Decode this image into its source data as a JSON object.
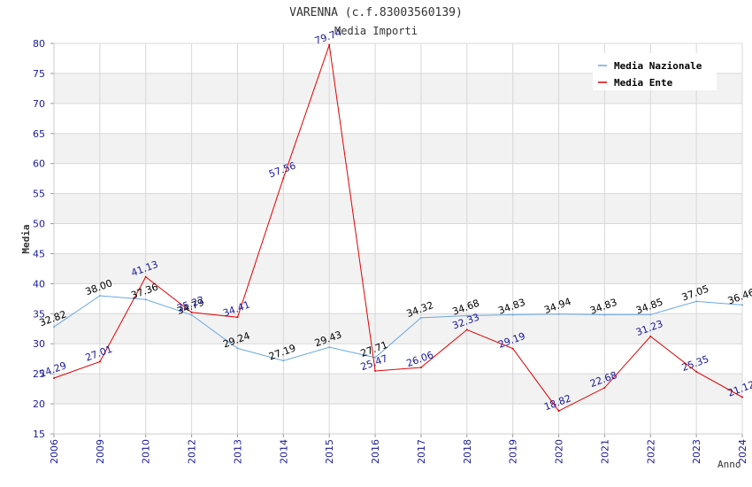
{
  "chart_data": {
    "type": "line",
    "title": "VARENNA (c.f.83003560139)",
    "subtitle": "Media Importi",
    "xlabel": "Anno",
    "ylabel": "Media",
    "ylim": [
      15,
      80
    ],
    "yticks": [
      15,
      20,
      25,
      30,
      35,
      40,
      45,
      50,
      55,
      60,
      65,
      70,
      75,
      80
    ],
    "categories": [
      "2006",
      "2009",
      "2010",
      "2012",
      "2013",
      "2014",
      "2015",
      "2016",
      "2017",
      "2018",
      "2019",
      "2020",
      "2021",
      "2022",
      "2023",
      "2024"
    ],
    "legend_position": "top-right",
    "series": [
      {
        "name": "Media Nazionale",
        "color": "#6aa8e0",
        "label_color": "#000000",
        "values": [
          32.82,
          38.0,
          37.36,
          34.79,
          29.24,
          27.19,
          29.43,
          27.71,
          34.32,
          34.68,
          34.83,
          34.94,
          34.83,
          34.85,
          37.05,
          36.46
        ],
        "labels": [
          "32.82",
          "38.00",
          "37.36",
          "34.79",
          "29.24",
          "27.19",
          "29.43",
          "27.71",
          "34.32",
          "34.68",
          "34.83",
          "34.94",
          "34.83",
          "34.85",
          "37.05",
          "36.46"
        ]
      },
      {
        "name": "Media Ente",
        "color": "#e00000",
        "label_color": "#1a1a99",
        "values": [
          24.29,
          27.01,
          41.13,
          35.22,
          34.41,
          57.56,
          79.74,
          25.47,
          26.06,
          32.33,
          29.19,
          18.82,
          22.68,
          31.23,
          25.35,
          21.12
        ],
        "labels": [
          "24.29",
          "27.01",
          "41.13",
          "35.22",
          "34.41",
          "57.56",
          "79.74",
          "25.47",
          "26.06",
          "32.33",
          "29.19",
          "18.82",
          "22.68",
          "31.23",
          "25.35",
          "21.12"
        ]
      }
    ],
    "colors": {
      "axis_tick_text": "#1a1a99",
      "band_shade": "#f2f2f2",
      "grid": "#d8d8d8",
      "title_text": "#333333"
    }
  }
}
